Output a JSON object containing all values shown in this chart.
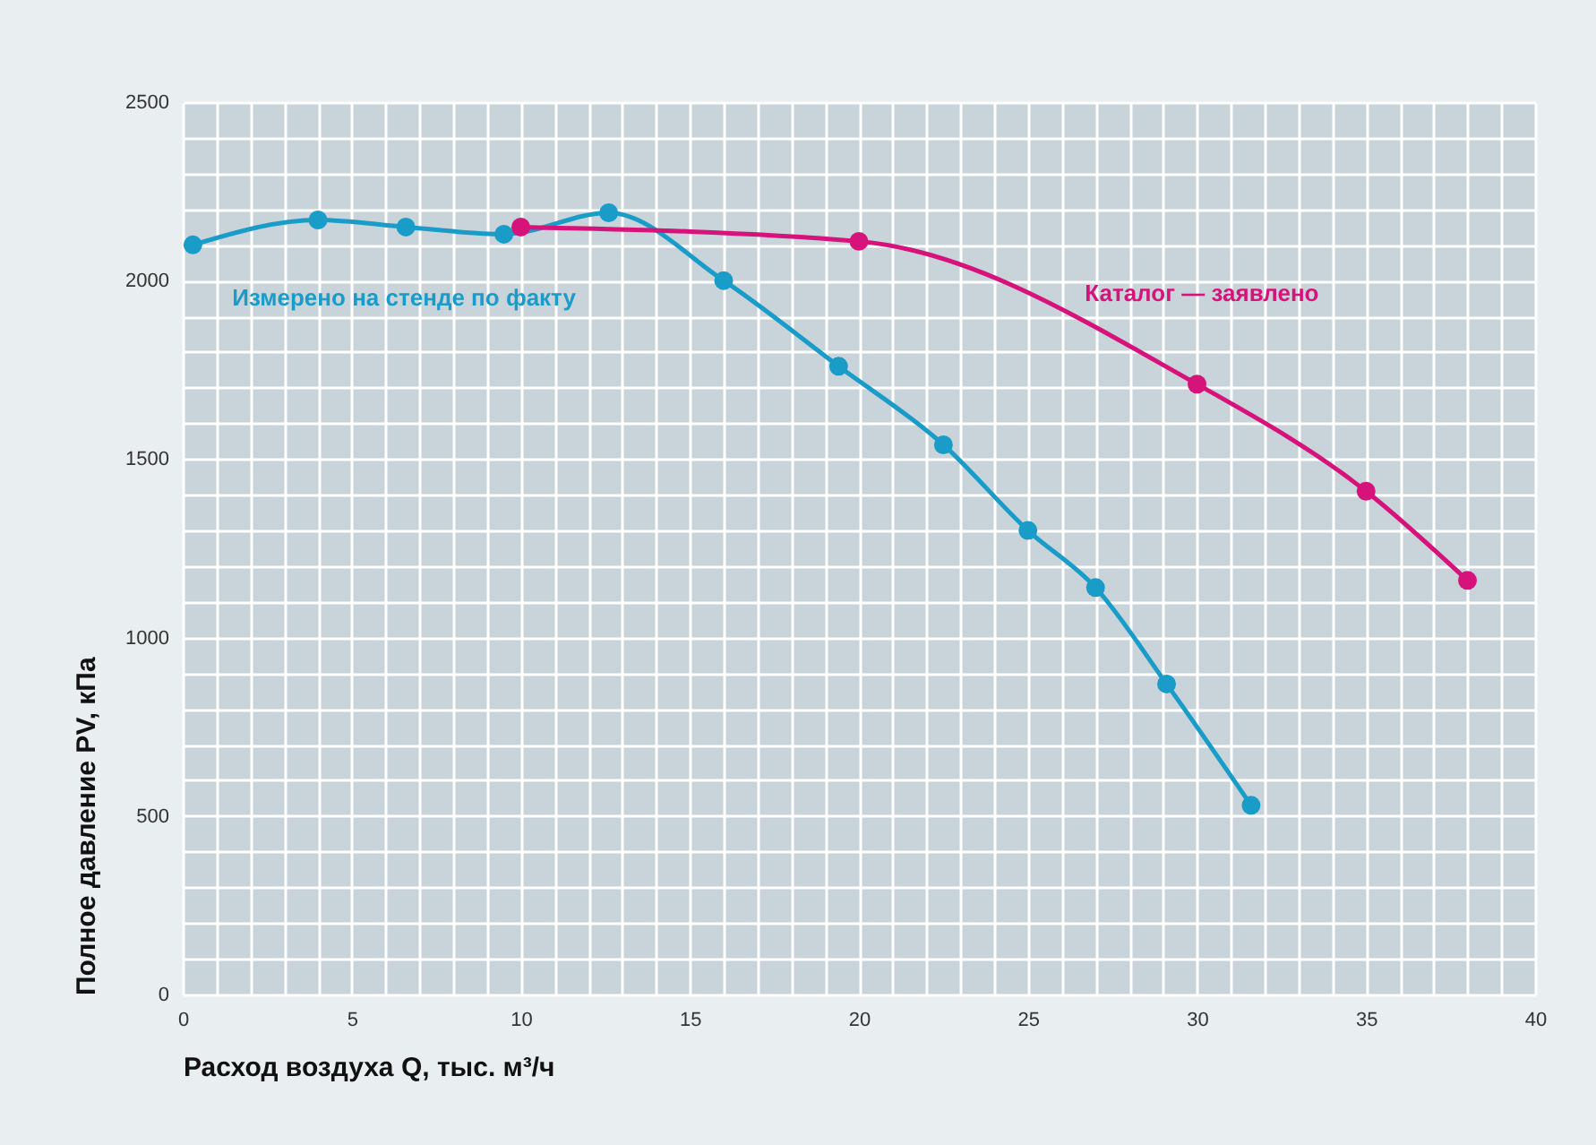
{
  "chart_data": {
    "type": "line",
    "xlabel": "Расход воздуха Q, тыс. м³/ч",
    "ylabel": "Полное давление PV, кПа",
    "xlim": [
      0,
      40
    ],
    "ylim": [
      0,
      2500
    ],
    "xticks": [
      0,
      {
        "value": 1,
        "label": null
      },
      {
        "value": 2,
        "label": null
      },
      {
        "value": 3,
        "label": null
      },
      {
        "value": 4,
        "label": null
      },
      5,
      {
        "value": 6,
        "label": null
      },
      {
        "value": 7,
        "label": null
      },
      {
        "value": 8,
        "label": null
      },
      {
        "value": 9,
        "label": null
      },
      10,
      {
        "value": 11,
        "label": null
      },
      {
        "value": 12,
        "label": null
      },
      {
        "value": 13,
        "label": null
      },
      {
        "value": 14,
        "label": null
      },
      15,
      {
        "value": 16,
        "label": null
      },
      {
        "value": 17,
        "label": null
      },
      {
        "value": 18,
        "label": null
      },
      {
        "value": 19,
        "label": null
      },
      20,
      {
        "value": 21,
        "label": null
      },
      {
        "value": 22,
        "label": null
      },
      {
        "value": 23,
        "label": null
      },
      {
        "value": 24,
        "label": null
      },
      25,
      {
        "value": 26,
        "label": null
      },
      {
        "value": 27,
        "label": null
      },
      {
        "value": 28,
        "label": null
      },
      {
        "value": 29,
        "label": null
      },
      30,
      {
        "value": 31,
        "label": null
      },
      {
        "value": 32,
        "label": null
      },
      {
        "value": 33,
        "label": null
      },
      {
        "value": 34,
        "label": null
      },
      35,
      {
        "value": 36,
        "label": null
      },
      {
        "value": 37,
        "label": null
      },
      {
        "value": 38,
        "label": null
      },
      {
        "value": 39,
        "label": null
      },
      40
    ],
    "yticks": [
      0,
      {
        "value": 100,
        "label": null
      },
      {
        "value": 200,
        "label": null
      },
      {
        "value": 300,
        "label": null
      },
      {
        "value": 400,
        "label": null
      },
      500,
      {
        "value": 600,
        "label": null
      },
      {
        "value": 700,
        "label": null
      },
      {
        "value": 800,
        "label": null
      },
      {
        "value": 900,
        "label": null
      },
      1000,
      {
        "value": 1100,
        "label": null
      },
      {
        "value": 1200,
        "label": null
      },
      {
        "value": 1300,
        "label": null
      },
      {
        "value": 1400,
        "label": null
      },
      1500,
      {
        "value": 1600,
        "label": null
      },
      {
        "value": 1700,
        "label": null
      },
      {
        "value": 1800,
        "label": null
      },
      {
        "value": 1900,
        "label": null
      },
      2000,
      {
        "value": 2100,
        "label": null
      },
      {
        "value": 2200,
        "label": null
      },
      {
        "value": 2300,
        "label": null
      },
      {
        "value": 2400,
        "label": null
      },
      2500
    ],
    "grid": true,
    "marker": "circle",
    "line_style": "solid",
    "series": [
      {
        "name": "Измерено на стенде по факту",
        "color": "#1a9cc8",
        "x": [
          0.3,
          4.0,
          6.6,
          9.5,
          12.6,
          16.0,
          19.4,
          22.5,
          25.0,
          27.0,
          29.1,
          31.6
        ],
        "values": [
          2100,
          2170,
          2150,
          2130,
          2190,
          2000,
          1760,
          1540,
          1300,
          1140,
          870,
          530
        ]
      },
      {
        "name": "Каталог — заявлено",
        "color": "#d6137a",
        "x": [
          10,
          20,
          30,
          35,
          38
        ],
        "values": [
          2150,
          2110,
          1710,
          1410,
          1160
        ]
      }
    ]
  }
}
